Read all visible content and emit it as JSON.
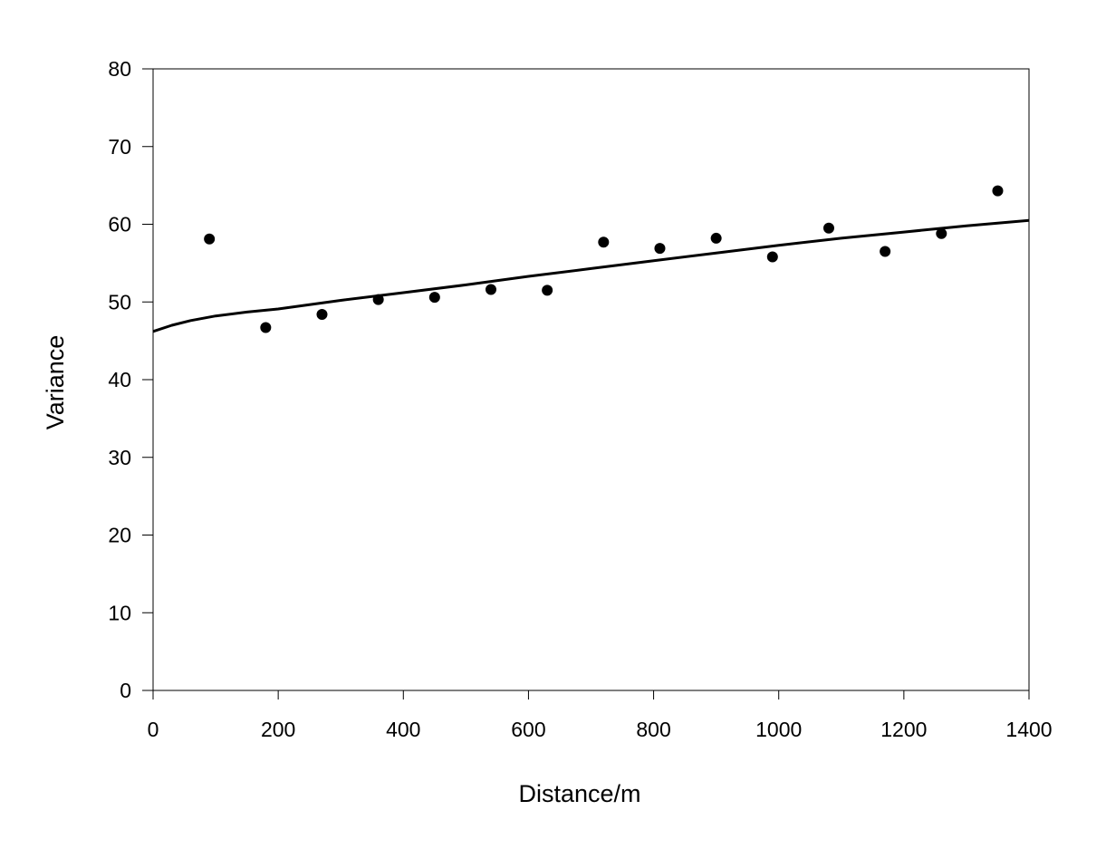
{
  "chart_data": {
    "type": "scatter",
    "title": "",
    "xlabel": "Distance/m",
    "ylabel": "Variance",
    "xlim": [
      0,
      1400
    ],
    "ylim": [
      0,
      80
    ],
    "xticks": [
      0,
      200,
      400,
      600,
      800,
      1000,
      1200,
      1400
    ],
    "yticks": [
      0,
      10,
      20,
      30,
      40,
      50,
      60,
      70,
      80
    ],
    "grid": false,
    "legend": "none",
    "series": [
      {
        "kind": "points",
        "x": [
          90,
          180,
          270,
          360,
          450,
          540,
          630,
          720,
          810,
          900,
          990,
          1080,
          1170,
          1260,
          1350
        ],
        "y": [
          58.1,
          46.7,
          48.4,
          50.3,
          50.6,
          51.6,
          51.5,
          57.7,
          56.9,
          58.2,
          55.8,
          59.5,
          56.5,
          58.8,
          64.3
        ],
        "color": "#000000"
      },
      {
        "kind": "fitted-curve",
        "x": [
          0,
          30,
          60,
          100,
          150,
          200,
          300,
          400,
          500,
          600,
          700,
          800,
          900,
          1000,
          1100,
          1200,
          1300,
          1400
        ],
        "y": [
          46.2,
          47.0,
          47.6,
          48.2,
          48.7,
          49.1,
          50.2,
          51.2,
          52.2,
          53.3,
          54.3,
          55.3,
          56.3,
          57.3,
          58.2,
          59.0,
          59.8,
          60.5
        ],
        "color": "#000000"
      }
    ]
  }
}
